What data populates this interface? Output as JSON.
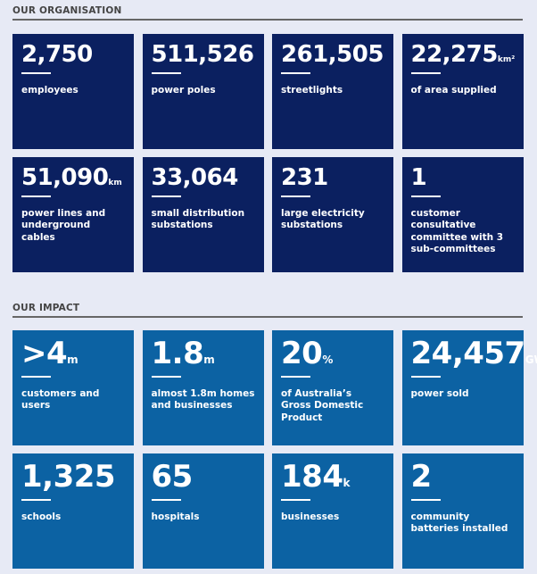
{
  "organisation": {
    "title": "OUR ORGANISATION",
    "tiles": [
      {
        "value": "2,750",
        "unit": "",
        "label": "employees"
      },
      {
        "value": "511,526",
        "unit": "",
        "label": "power poles"
      },
      {
        "value": "261,505",
        "unit": "",
        "label": "streetlights"
      },
      {
        "value": "22,275",
        "unit": "km²",
        "label": "of area supplied"
      },
      {
        "value": "51,090",
        "unit": "km",
        "label": "power lines and underground cables"
      },
      {
        "value": "33,064",
        "unit": "",
        "label": "small distribution substations"
      },
      {
        "value": "231",
        "unit": "",
        "label": "large electricity substations"
      },
      {
        "value": "1",
        "unit": "",
        "label": "customer consultative committee with 3 sub-committees"
      }
    ]
  },
  "impact": {
    "title": "OUR IMPACT",
    "tiles": [
      {
        "value": ">4",
        "unit": "m",
        "label": "customers and users"
      },
      {
        "value": "1.8",
        "unit": "m",
        "label": "almost 1.8m homes and businesses"
      },
      {
        "value": "20",
        "unit": "%",
        "label": "of Australia’s Gross Domestic Product"
      },
      {
        "value": "24,457",
        "unit": "GWh",
        "label": "power sold"
      },
      {
        "value": "1,325",
        "unit": "",
        "label": "schools"
      },
      {
        "value": "65",
        "unit": "",
        "label": "hospitals"
      },
      {
        "value": "184",
        "unit": "k",
        "label": "businesses"
      },
      {
        "value": "2",
        "unit": "",
        "label": "community batteries installed"
      }
    ]
  }
}
